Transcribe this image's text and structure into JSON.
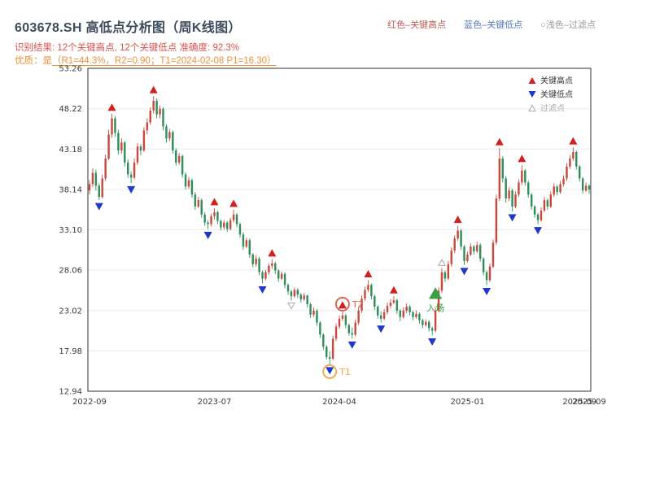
{
  "header": {
    "title": "603678.SH 高低点分析图（周K线图）",
    "legend_top": [
      {
        "label": "红色–关键高点",
        "color": "#bb5b55"
      },
      {
        "label": "蓝色–关键低点",
        "color": "#5577bb"
      },
      {
        "label": "○浅色–过滤点",
        "color": "#999999"
      }
    ],
    "result_line": "识别结果: 12个关键高点, 12个关键低点  准确度: 92.3%",
    "quality_prefix": "优质：是",
    "quality_detail": "（R1=44.3%，R2=0.90；T1=2024-02-08 P1=16.30）"
  },
  "chart_data": {
    "type": "candlestick",
    "title": "603678.SH 高低点分析图（周K线图）",
    "xlabel": "",
    "ylabel": "",
    "ylim": [
      12.94,
      53.26
    ],
    "yticks": [
      53.26,
      48.22,
      43.18,
      38.14,
      33.1,
      28.06,
      23.02,
      17.98,
      12.94
    ],
    "xticks": [
      {
        "index": 0,
        "label": "2022-09"
      },
      {
        "index": 39,
        "label": "2023-07"
      },
      {
        "index": 78,
        "label": "2024-04"
      },
      {
        "index": 118,
        "label": "2025-01"
      },
      {
        "index": 153,
        "label": "2025-09"
      },
      {
        "index": 156,
        "label": "2025-09"
      }
    ],
    "colors": {
      "up": "#c84a3f",
      "down": "#2f8e5b",
      "high_marker": "#d41f1f",
      "low_marker": "#2038c8",
      "filtered_marker": "#aaaaaa",
      "grid": "#ececec",
      "axis": "#2f2f2f",
      "tick_text": "#3a3a3a"
    },
    "candles": [
      [
        38.0,
        39.3,
        37.5,
        38.8
      ],
      [
        38.8,
        40.8,
        38.4,
        40.2
      ],
      [
        40.2,
        40.6,
        38.0,
        38.6
      ],
      [
        38.6,
        38.9,
        36.8,
        37.2
      ],
      [
        37.2,
        40.0,
        37.0,
        39.5
      ],
      [
        39.5,
        42.5,
        39.2,
        42.0
      ],
      [
        42.0,
        45.6,
        41.8,
        45.0
      ],
      [
        45.0,
        47.6,
        44.6,
        47.0
      ],
      [
        47.0,
        47.3,
        44.7,
        45.2
      ],
      [
        45.2,
        45.6,
        42.5,
        43.0
      ],
      [
        43.0,
        44.5,
        42.6,
        44.0
      ],
      [
        44.0,
        44.2,
        41.0,
        41.5
      ],
      [
        41.5,
        41.9,
        39.6,
        40.0
      ],
      [
        40.0,
        40.4,
        38.9,
        39.6
      ],
      [
        39.6,
        42.0,
        39.4,
        41.5
      ],
      [
        41.5,
        43.9,
        41.2,
        43.5
      ],
      [
        43.5,
        43.8,
        42.4,
        43.0
      ],
      [
        43.0,
        45.9,
        42.8,
        45.5
      ],
      [
        45.5,
        47.0,
        45.0,
        46.5
      ],
      [
        46.5,
        48.4,
        46.2,
        48.0
      ],
      [
        48.0,
        49.8,
        47.6,
        49.2
      ],
      [
        49.2,
        49.5,
        47.0,
        47.5
      ],
      [
        47.5,
        48.6,
        47.0,
        48.2
      ],
      [
        48.2,
        48.4,
        45.5,
        46.0
      ],
      [
        46.0,
        46.3,
        44.0,
        44.5
      ],
      [
        44.5,
        45.7,
        44.2,
        45.3
      ],
      [
        45.3,
        45.5,
        42.6,
        43.0
      ],
      [
        43.0,
        43.3,
        41.1,
        41.5
      ],
      [
        41.5,
        42.7,
        41.2,
        42.3
      ],
      [
        42.3,
        42.5,
        39.6,
        40.0
      ],
      [
        40.0,
        40.3,
        38.1,
        38.5
      ],
      [
        38.5,
        39.7,
        38.2,
        39.3
      ],
      [
        39.3,
        39.5,
        37.1,
        37.5
      ],
      [
        37.5,
        37.8,
        35.6,
        36.0
      ],
      [
        36.0,
        37.2,
        35.8,
        36.8
      ],
      [
        36.8,
        37.0,
        34.6,
        35.0
      ],
      [
        35.0,
        35.3,
        33.6,
        34.0
      ],
      [
        34.0,
        34.3,
        33.2,
        33.8
      ],
      [
        33.8,
        35.1,
        33.5,
        34.8
      ],
      [
        34.8,
        35.8,
        34.4,
        35.3
      ],
      [
        35.3,
        35.5,
        33.8,
        34.2
      ],
      [
        34.2,
        34.4,
        33.0,
        33.4
      ],
      [
        33.4,
        34.3,
        33.1,
        34.0
      ],
      [
        34.0,
        34.2,
        32.8,
        33.2
      ],
      [
        33.2,
        34.6,
        33.0,
        34.3
      ],
      [
        34.3,
        35.6,
        34.0,
        35.0
      ],
      [
        35.0,
        35.2,
        33.4,
        33.8
      ],
      [
        33.8,
        34.0,
        32.1,
        32.5
      ],
      [
        32.5,
        32.8,
        30.6,
        31.0
      ],
      [
        31.0,
        32.1,
        30.8,
        31.8
      ],
      [
        31.8,
        32.0,
        29.6,
        30.0
      ],
      [
        30.0,
        30.2,
        28.4,
        28.8
      ],
      [
        28.8,
        29.9,
        28.5,
        29.5
      ],
      [
        29.5,
        29.7,
        27.4,
        27.8
      ],
      [
        27.8,
        28.0,
        26.4,
        27.0
      ],
      [
        27.0,
        28.1,
        26.8,
        27.8
      ],
      [
        27.8,
        28.9,
        27.5,
        28.6
      ],
      [
        28.6,
        29.4,
        28.2,
        28.9
      ],
      [
        28.9,
        29.1,
        27.6,
        28.0
      ],
      [
        28.0,
        28.2,
        26.6,
        27.0
      ],
      [
        27.0,
        27.9,
        26.8,
        27.6
      ],
      [
        27.6,
        27.8,
        25.8,
        26.2
      ],
      [
        26.2,
        26.4,
        25.0,
        25.4
      ],
      [
        25.4,
        25.6,
        24.3,
        24.8
      ],
      [
        24.8,
        25.9,
        24.6,
        25.6
      ],
      [
        25.6,
        25.8,
        24.6,
        25.0
      ],
      [
        25.0,
        25.2,
        24.0,
        24.4
      ],
      [
        24.4,
        25.2,
        24.2,
        24.9
      ],
      [
        24.9,
        25.0,
        23.4,
        23.8
      ],
      [
        23.8,
        24.0,
        22.1,
        22.5
      ],
      [
        22.5,
        23.4,
        22.2,
        23.0
      ],
      [
        23.0,
        23.2,
        21.1,
        21.5
      ],
      [
        21.5,
        21.7,
        19.6,
        20.0
      ],
      [
        20.0,
        20.2,
        18.1,
        18.5
      ],
      [
        18.5,
        18.7,
        16.9,
        17.2
      ],
      [
        17.2,
        17.9,
        16.3,
        17.0
      ],
      [
        17.0,
        19.9,
        16.8,
        19.5
      ],
      [
        19.5,
        21.4,
        19.2,
        21.0
      ],
      [
        21.0,
        22.4,
        20.7,
        22.0
      ],
      [
        22.0,
        22.9,
        21.7,
        22.4
      ],
      [
        22.4,
        22.6,
        20.8,
        21.2
      ],
      [
        21.2,
        21.4,
        19.9,
        20.2
      ],
      [
        20.2,
        20.9,
        19.5,
        20.0
      ],
      [
        20.0,
        21.9,
        19.8,
        21.5
      ],
      [
        21.5,
        23.4,
        21.2,
        23.0
      ],
      [
        23.0,
        24.9,
        22.7,
        24.5
      ],
      [
        24.5,
        26.0,
        24.2,
        25.6
      ],
      [
        25.6,
        26.8,
        25.3,
        26.2
      ],
      [
        26.2,
        26.4,
        24.4,
        24.8
      ],
      [
        24.8,
        25.0,
        23.1,
        23.5
      ],
      [
        23.5,
        23.7,
        22.0,
        22.4
      ],
      [
        22.4,
        22.9,
        21.5,
        22.0
      ],
      [
        22.0,
        23.2,
        21.8,
        22.8
      ],
      [
        22.8,
        24.0,
        22.5,
        23.6
      ],
      [
        23.6,
        24.4,
        23.3,
        24.0
      ],
      [
        24.0,
        24.8,
        23.8,
        24.3
      ],
      [
        24.3,
        24.5,
        22.6,
        23.0
      ],
      [
        23.0,
        23.2,
        21.7,
        22.2
      ],
      [
        22.2,
        23.4,
        22.0,
        23.0
      ],
      [
        23.0,
        23.9,
        22.7,
        23.5
      ],
      [
        23.5,
        23.7,
        22.4,
        22.8
      ],
      [
        22.8,
        23.0,
        21.8,
        22.2
      ],
      [
        22.2,
        23.0,
        22.0,
        22.6
      ],
      [
        22.6,
        22.8,
        21.4,
        21.8
      ],
      [
        21.8,
        22.0,
        20.8,
        21.2
      ],
      [
        21.2,
        21.9,
        21.0,
        21.6
      ],
      [
        21.6,
        21.8,
        20.4,
        20.8
      ],
      [
        20.8,
        21.0,
        19.9,
        20.5
      ],
      [
        20.5,
        23.4,
        20.3,
        23.0
      ],
      [
        23.0,
        25.9,
        22.8,
        25.5
      ],
      [
        25.5,
        28.3,
        25.2,
        27.8
      ],
      [
        27.8,
        28.0,
        26.6,
        27.0
      ],
      [
        27.0,
        29.2,
        26.8,
        28.8
      ],
      [
        28.8,
        30.9,
        28.5,
        30.5
      ],
      [
        30.5,
        32.4,
        30.2,
        32.0
      ],
      [
        32.0,
        33.6,
        31.7,
        33.0
      ],
      [
        33.0,
        33.2,
        30.6,
        31.0
      ],
      [
        31.0,
        31.2,
        28.7,
        29.2
      ],
      [
        29.2,
        30.4,
        29.0,
        30.0
      ],
      [
        30.0,
        31.4,
        29.8,
        31.0
      ],
      [
        31.0,
        31.2,
        30.0,
        30.4
      ],
      [
        30.4,
        31.6,
        30.2,
        31.2
      ],
      [
        31.2,
        31.4,
        29.1,
        29.5
      ],
      [
        29.5,
        29.7,
        27.4,
        27.8
      ],
      [
        27.8,
        28.0,
        26.2,
        26.8
      ],
      [
        26.8,
        28.9,
        26.6,
        28.5
      ],
      [
        28.5,
        31.9,
        28.3,
        31.5
      ],
      [
        31.5,
        37.5,
        31.2,
        37.0
      ],
      [
        37.0,
        43.3,
        36.7,
        42.0
      ],
      [
        42.0,
        42.3,
        39.0,
        39.5
      ],
      [
        39.5,
        39.8,
        36.5,
        37.0
      ],
      [
        37.0,
        38.4,
        36.7,
        38.0
      ],
      [
        38.0,
        38.2,
        35.4,
        36.0
      ],
      [
        36.0,
        37.9,
        35.8,
        37.5
      ],
      [
        37.5,
        39.4,
        37.2,
        39.0
      ],
      [
        39.0,
        41.2,
        38.7,
        40.5
      ],
      [
        40.5,
        40.7,
        38.6,
        39.0
      ],
      [
        39.0,
        39.2,
        37.1,
        37.5
      ],
      [
        37.5,
        37.7,
        35.6,
        36.0
      ],
      [
        36.0,
        36.2,
        34.6,
        35.0
      ],
      [
        35.0,
        35.2,
        33.8,
        34.3
      ],
      [
        34.3,
        35.9,
        34.1,
        35.5
      ],
      [
        35.5,
        37.2,
        35.3,
        36.8
      ],
      [
        36.8,
        37.0,
        35.6,
        36.0
      ],
      [
        36.0,
        37.9,
        35.8,
        37.5
      ],
      [
        37.5,
        38.9,
        37.2,
        38.5
      ],
      [
        38.5,
        38.7,
        37.4,
        37.8
      ],
      [
        37.8,
        39.2,
        37.6,
        38.8
      ],
      [
        38.8,
        39.9,
        38.5,
        39.5
      ],
      [
        39.5,
        41.4,
        39.2,
        41.0
      ],
      [
        41.0,
        42.4,
        40.7,
        42.0
      ],
      [
        42.0,
        43.4,
        41.7,
        42.8
      ],
      [
        42.8,
        43.0,
        40.6,
        41.0
      ],
      [
        41.0,
        41.2,
        39.1,
        39.5
      ],
      [
        39.5,
        39.7,
        37.6,
        38.0
      ],
      [
        38.0,
        39.0,
        37.8,
        38.6
      ],
      [
        38.6,
        38.8,
        37.6,
        38.14
      ]
    ],
    "key_highs": [
      7,
      20,
      39,
      45,
      57,
      79,
      87,
      95,
      115,
      128,
      135,
      151
    ],
    "key_lows": [
      3,
      13,
      37,
      54,
      75,
      82,
      91,
      107,
      117,
      124,
      132,
      140
    ],
    "filtered_points": [
      {
        "index": 63,
        "side": "low"
      },
      {
        "index": 110,
        "side": "high"
      }
    ],
    "annotations": [
      {
        "name": "T1",
        "label": "T1",
        "index": 75,
        "side": "low",
        "circle_color": "#f2a93b",
        "label_color": "#f2a93b"
      },
      {
        "name": "T2",
        "label": "T2",
        "index": 79,
        "side": "high",
        "circle_color": "#e0584a",
        "label_color": "#e0584a"
      },
      {
        "name": "entry",
        "type": "entry",
        "label": "入场",
        "index": 108,
        "price": 25.2,
        "color": "#38a146"
      }
    ],
    "legend": {
      "items": [
        {
          "label": "关键高点",
          "marker": "up",
          "color": "#d41f1f",
          "text_color": "#333333"
        },
        {
          "label": "关键低点",
          "marker": "down",
          "color": "#2038c8",
          "text_color": "#333333"
        },
        {
          "label": "过滤点",
          "marker": "hollow",
          "color": "#aaaaaa",
          "text_color": "#aaaaaa"
        }
      ]
    }
  }
}
